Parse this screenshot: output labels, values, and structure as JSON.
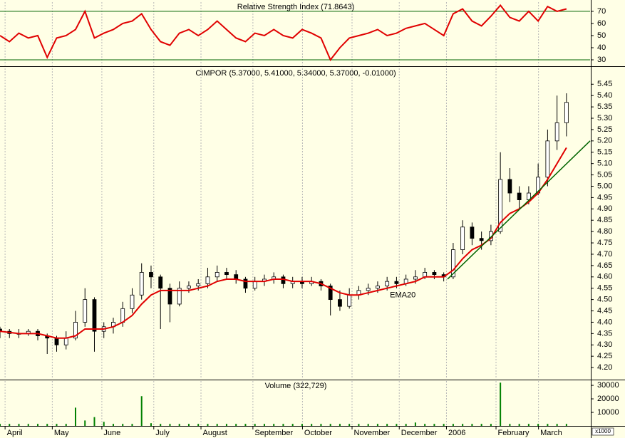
{
  "chart_data": [
    {
      "type": "line",
      "title": "Relative Strength Index (71.8643)",
      "color": "#e00000",
      "x": [
        0,
        4,
        8,
        12,
        16,
        20,
        24,
        28,
        32,
        36,
        40,
        44,
        48,
        52,
        56,
        60,
        64,
        68,
        72,
        76,
        80,
        84,
        88,
        92,
        96,
        100,
        104,
        108,
        112,
        116,
        120,
        124,
        128,
        132,
        136,
        140,
        144,
        148,
        152,
        156,
        160,
        164,
        168,
        172,
        176,
        180,
        184,
        188,
        192,
        196,
        200,
        204,
        208,
        212,
        216,
        220,
        224,
        228,
        232,
        236,
        240
      ],
      "values": [
        50,
        45,
        52,
        48,
        50,
        32,
        48,
        50,
        55,
        70,
        48,
        52,
        55,
        60,
        62,
        68,
        55,
        45,
        42,
        52,
        55,
        50,
        55,
        62,
        55,
        48,
        45,
        52,
        50,
        55,
        50,
        48,
        55,
        52,
        48,
        30,
        40,
        48,
        50,
        52,
        55,
        50,
        52,
        56,
        58,
        60,
        55,
        50,
        68,
        72,
        62,
        58,
        66,
        75,
        65,
        62,
        70,
        62,
        74,
        70,
        72
      ],
      "xlim": [
        0,
        250
      ],
      "ylim": [
        25.3,
        77.6
      ],
      "yticks": [
        30,
        40,
        50,
        60,
        70
      ],
      "hlines": [
        30,
        70
      ],
      "hline_color": "#006400"
    },
    {
      "type": "candlestick",
      "title": "CIMPOR (5.37000, 5.41000, 5.34000, 5.37000, -0.01000)",
      "x": [
        0,
        4,
        8,
        12,
        16,
        20,
        24,
        28,
        32,
        36,
        40,
        44,
        48,
        52,
        56,
        60,
        64,
        68,
        72,
        76,
        80,
        84,
        88,
        92,
        96,
        100,
        104,
        108,
        112,
        116,
        120,
        124,
        128,
        132,
        136,
        140,
        144,
        148,
        152,
        156,
        160,
        164,
        168,
        172,
        176,
        180,
        184,
        188,
        192,
        196,
        200,
        204,
        208,
        212,
        216,
        220,
        224,
        228,
        232,
        236,
        240
      ],
      "open": [
        4.37,
        4.36,
        4.35,
        4.35,
        4.36,
        4.34,
        4.33,
        4.3,
        4.33,
        4.4,
        4.5,
        4.36,
        4.38,
        4.4,
        4.46,
        4.52,
        4.62,
        4.6,
        4.55,
        4.48,
        4.55,
        4.56,
        4.57,
        4.6,
        4.62,
        4.61,
        4.59,
        4.55,
        4.58,
        4.59,
        4.6,
        4.57,
        4.58,
        4.57,
        4.58,
        4.56,
        4.5,
        4.47,
        4.52,
        4.54,
        4.55,
        4.56,
        4.58,
        4.57,
        4.59,
        4.6,
        4.62,
        4.61,
        4.6,
        4.72,
        4.82,
        4.77,
        4.76,
        4.8,
        5.03,
        4.97,
        4.94,
        4.97,
        5.04,
        5.2,
        5.28
      ],
      "high": [
        4.38,
        4.37,
        4.37,
        4.37,
        4.37,
        4.35,
        4.34,
        4.36,
        4.45,
        4.55,
        4.51,
        4.4,
        4.42,
        4.49,
        4.55,
        4.66,
        4.65,
        4.61,
        4.57,
        4.58,
        4.58,
        4.59,
        4.64,
        4.65,
        4.64,
        4.63,
        4.6,
        4.6,
        4.61,
        4.62,
        4.61,
        4.6,
        4.6,
        4.6,
        4.59,
        4.57,
        4.54,
        4.55,
        4.56,
        4.57,
        4.58,
        4.6,
        4.6,
        4.61,
        4.63,
        4.64,
        4.63,
        4.62,
        4.75,
        4.85,
        4.84,
        4.8,
        4.83,
        5.15,
        5.08,
        5.0,
        5.0,
        5.1,
        5.25,
        5.4,
        5.41
      ],
      "low": [
        4.33,
        4.33,
        4.33,
        4.34,
        4.32,
        4.26,
        4.27,
        4.28,
        4.32,
        4.38,
        4.27,
        4.33,
        4.35,
        4.38,
        4.44,
        4.5,
        4.55,
        4.37,
        4.4,
        4.47,
        4.53,
        4.54,
        4.55,
        4.58,
        4.59,
        4.57,
        4.53,
        4.54,
        4.56,
        4.57,
        4.55,
        4.55,
        4.55,
        4.56,
        4.54,
        4.43,
        4.45,
        4.46,
        4.5,
        4.52,
        4.53,
        4.54,
        4.55,
        4.56,
        4.57,
        4.59,
        4.59,
        4.58,
        4.59,
        4.7,
        4.74,
        4.72,
        4.74,
        4.79,
        4.93,
        4.9,
        4.92,
        4.96,
        5.0,
        5.16,
        5.22
      ],
      "close": [
        4.36,
        4.35,
        4.35,
        4.36,
        4.34,
        4.33,
        4.3,
        4.33,
        4.4,
        4.5,
        4.36,
        4.38,
        4.4,
        4.46,
        4.52,
        4.62,
        4.6,
        4.55,
        4.48,
        4.55,
        4.56,
        4.57,
        4.6,
        4.62,
        4.61,
        4.59,
        4.55,
        4.58,
        4.59,
        4.6,
        4.57,
        4.58,
        4.57,
        4.58,
        4.56,
        4.5,
        4.47,
        4.52,
        4.54,
        4.55,
        4.56,
        4.58,
        4.57,
        4.59,
        4.6,
        4.62,
        4.61,
        4.6,
        4.72,
        4.82,
        4.77,
        4.76,
        4.8,
        5.03,
        4.97,
        4.94,
        4.97,
        5.04,
        5.2,
        5.28,
        5.37
      ],
      "series": [
        {
          "name": "EMA20",
          "color": "#e00000",
          "values": [
            4.36,
            4.355,
            4.35,
            4.35,
            4.35,
            4.34,
            4.33,
            4.33,
            4.34,
            4.37,
            4.37,
            4.37,
            4.38,
            4.4,
            4.43,
            4.48,
            4.52,
            4.54,
            4.54,
            4.54,
            4.54,
            4.55,
            4.56,
            4.58,
            4.59,
            4.59,
            4.58,
            4.58,
            4.58,
            4.59,
            4.59,
            4.58,
            4.58,
            4.58,
            4.57,
            4.55,
            4.53,
            4.52,
            4.52,
            4.53,
            4.54,
            4.55,
            4.56,
            4.57,
            4.58,
            4.6,
            4.6,
            4.6,
            4.63,
            4.68,
            4.72,
            4.74,
            4.77,
            4.84,
            4.88,
            4.9,
            4.93,
            4.97,
            5.03,
            5.1,
            5.17
          ]
        }
      ],
      "label_color": "#c04000",
      "trend_line": {
        "color": "#006400",
        "x": [
          189.6,
          250
        ],
        "values": [
          4.59,
          5.2
        ]
      },
      "xlim": [
        0,
        250
      ],
      "ylim": [
        4.15,
        5.52
      ],
      "yticks": [
        {
          "value": 4.2,
          "label": "4.20"
        },
        4.25,
        {
          "value": 4.3,
          "label": "4.30"
        },
        4.35,
        {
          "value": 4.4,
          "label": "4.40"
        },
        4.45,
        {
          "value": 4.5,
          "label": "4.50"
        },
        4.55,
        {
          "value": 4.6,
          "label": "4.60"
        },
        4.65,
        {
          "value": 4.7,
          "label": "4.70"
        },
        4.75,
        {
          "value": 4.8,
          "label": "4.80"
        },
        4.85,
        {
          "value": 4.9,
          "label": "4.90"
        },
        4.95,
        {
          "value": 5,
          "label": "5.00"
        },
        5.05,
        {
          "value": 5.1,
          "label": "5.10"
        },
        5.15,
        {
          "value": 5.2,
          "label": "5.20"
        },
        5.25,
        {
          "value": 5.3,
          "label": "5.30"
        },
        5.35,
        {
          "value": 5.4,
          "label": "5.40"
        },
        5.45
      ]
    },
    {
      "type": "bar",
      "title": "Volume (322,729)",
      "color": "#008000",
      "unit_label": "x1000",
      "x": [
        0,
        4,
        8,
        12,
        16,
        20,
        24,
        28,
        32,
        36,
        40,
        44,
        48,
        52,
        56,
        60,
        64,
        68,
        72,
        76,
        80,
        84,
        88,
        92,
        96,
        100,
        104,
        108,
        112,
        116,
        120,
        124,
        128,
        132,
        136,
        140,
        144,
        148,
        152,
        156,
        160,
        164,
        168,
        172,
        176,
        180,
        184,
        188,
        192,
        196,
        200,
        204,
        208,
        212,
        216,
        220,
        224,
        228,
        232,
        236,
        240
      ],
      "values": [
        1500,
        1500,
        1500,
        1500,
        1500,
        1500,
        1500,
        1500,
        13500,
        4000,
        6500,
        3000,
        1500,
        1500,
        1500,
        22000,
        2000,
        1500,
        1500,
        1500,
        1500,
        1500,
        1500,
        1500,
        1500,
        1500,
        1500,
        1500,
        1500,
        1500,
        1500,
        1500,
        1500,
        1500,
        1500,
        1500,
        1500,
        1500,
        1500,
        1500,
        1500,
        1500,
        1500,
        1500,
        2500,
        1500,
        1500,
        1500,
        1500,
        1500,
        1500,
        1500,
        1500,
        32000,
        1500,
        1500,
        1500,
        1500,
        1500,
        1500,
        1500
      ],
      "xlim": [
        0,
        250
      ],
      "ylim": [
        0,
        33200
      ],
      "yticks": [
        10000,
        20000,
        30000
      ],
      "xticks": [
        {
          "value": 2,
          "label": "April"
        },
        {
          "value": 22,
          "label": "May"
        },
        {
          "value": 43,
          "label": "June"
        },
        {
          "value": 65,
          "label": "July"
        },
        {
          "value": 85,
          "label": "August"
        },
        {
          "value": 107,
          "label": "September"
        },
        {
          "value": 128,
          "label": "October"
        },
        {
          "value": 149,
          "label": "November"
        },
        {
          "value": 169,
          "label": "December"
        },
        {
          "value": 189,
          "label": "2006"
        },
        {
          "value": 210,
          "label": "February"
        },
        {
          "value": 228,
          "label": "March"
        }
      ]
    }
  ]
}
